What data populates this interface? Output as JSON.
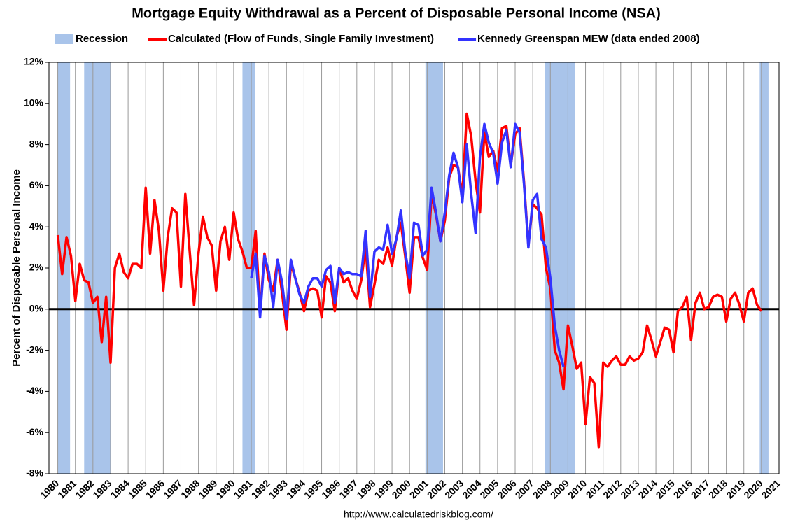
{
  "chart_data": {
    "type": "line",
    "title": "Mortgage Equity Withdrawal as a Percent of Disposable Personal Income (NSA)",
    "ylabel": "Percent of Disposable Personal Income",
    "source": "http://www.calculatedriskblog.com/",
    "xlim": [
      1979.5,
      2021
    ],
    "xticks": [
      1980,
      1981,
      1982,
      1983,
      1984,
      1985,
      1986,
      1987,
      1988,
      1989,
      1990,
      1991,
      1992,
      1993,
      1994,
      1995,
      1996,
      1997,
      1998,
      1999,
      2000,
      2001,
      2002,
      2003,
      2004,
      2005,
      2006,
      2007,
      2008,
      2009,
      2010,
      2011,
      2012,
      2013,
      2014,
      2015,
      2016,
      2017,
      2018,
      2019,
      2020,
      2021
    ],
    "ylim": [
      -8,
      12
    ],
    "yticks": [
      {
        "value": -8,
        "label": "-8%"
      },
      {
        "value": -6,
        "label": "-6%"
      },
      {
        "value": -4,
        "label": "-4%"
      },
      {
        "value": -2,
        "label": "-2%"
      },
      {
        "value": 0,
        "label": "0%"
      },
      {
        "value": 2,
        "label": "2%"
      },
      {
        "value": 4,
        "label": "4%"
      },
      {
        "value": 6,
        "label": "6%"
      },
      {
        "value": 8,
        "label": "8%"
      },
      {
        "value": 10,
        "label": "10%"
      },
      {
        "value": 12,
        "label": "12%"
      }
    ],
    "grid": true,
    "zero_line": true,
    "recessions": {
      "name": "Recession",
      "color": "#a9c4ea",
      "ranges": [
        [
          1980.0,
          1980.7
        ],
        [
          1981.5,
          1983.0
        ],
        [
          1990.5,
          1991.2
        ],
        [
          2000.9,
          2001.9
        ],
        [
          2007.7,
          2009.4
        ],
        [
          2019.9,
          2020.4
        ]
      ]
    },
    "x": [
      1980,
      1980.25,
      1980.5,
      1980.75,
      1981,
      1981.25,
      1981.5,
      1981.75,
      1982,
      1982.25,
      1982.5,
      1982.75,
      1983,
      1983.25,
      1983.5,
      1983.75,
      1984,
      1984.25,
      1984.5,
      1984.75,
      1985,
      1985.25,
      1985.5,
      1985.75,
      1986,
      1986.25,
      1986.5,
      1986.75,
      1987,
      1987.25,
      1987.5,
      1987.75,
      1988,
      1988.25,
      1988.5,
      1988.75,
      1989,
      1989.25,
      1989.5,
      1989.75,
      1990,
      1990.25,
      1990.5,
      1990.75,
      1991,
      1991.25,
      1991.5,
      1991.75,
      1992,
      1992.25,
      1992.5,
      1992.75,
      1993,
      1993.25,
      1993.5,
      1993.75,
      1994,
      1994.25,
      1994.5,
      1994.75,
      1995,
      1995.25,
      1995.5,
      1995.75,
      1996,
      1996.25,
      1996.5,
      1996.75,
      1997,
      1997.25,
      1997.5,
      1997.75,
      1998,
      1998.25,
      1998.5,
      1998.75,
      1999,
      1999.25,
      1999.5,
      1999.75,
      2000,
      2000.25,
      2000.5,
      2000.75,
      2001,
      2001.25,
      2001.5,
      2001.75,
      2002,
      2002.25,
      2002.5,
      2002.75,
      2003,
      2003.25,
      2003.5,
      2003.75,
      2004,
      2004.25,
      2004.5,
      2004.75,
      2005,
      2005.25,
      2005.5,
      2005.75,
      2006,
      2006.25,
      2006.5,
      2006.75,
      2007,
      2007.25,
      2007.5,
      2007.75,
      2008,
      2008.25,
      2008.5,
      2008.75,
      2009,
      2009.25,
      2009.5,
      2009.75,
      2010,
      2010.25,
      2010.5,
      2010.75,
      2011,
      2011.25,
      2011.5,
      2011.75,
      2012,
      2012.25,
      2012.5,
      2012.75,
      2013,
      2013.25,
      2013.5,
      2013.75,
      2014,
      2014.25,
      2014.5,
      2014.75,
      2015,
      2015.25,
      2015.5,
      2015.75,
      2016,
      2016.25,
      2016.5,
      2016.75,
      2017,
      2017.25,
      2017.5,
      2017.75,
      2018,
      2018.25,
      2018.5,
      2018.75,
      2019,
      2019.25,
      2019.5,
      2019.75,
      2020
    ],
    "series": [
      {
        "name": "Calculated (Flow of Funds, Single Family Investment)",
        "color": "#ff0000",
        "values": [
          3.6,
          1.7,
          3.5,
          2.6,
          0.4,
          2.2,
          1.4,
          1.3,
          0.3,
          0.6,
          -1.6,
          0.6,
          -2.6,
          2.0,
          2.7,
          1.8,
          1.5,
          2.2,
          2.2,
          2.0,
          5.9,
          2.7,
          5.3,
          3.8,
          0.9,
          3.5,
          4.9,
          4.7,
          1.1,
          5.6,
          2.8,
          0.2,
          2.7,
          4.5,
          3.5,
          3.1,
          0.9,
          3.3,
          4.0,
          2.4,
          4.7,
          3.4,
          2.8,
          2.0,
          2.0,
          3.8,
          -0.2,
          2.7,
          1.4,
          0.9,
          2.4,
          0.8,
          -1.0,
          2.2,
          1.5,
          0.8,
          -0.1,
          0.9,
          1.0,
          0.9,
          -0.4,
          1.6,
          1.3,
          -0.1,
          2.0,
          1.3,
          1.5,
          0.9,
          0.5,
          1.4,
          3.0,
          0.1,
          1.2,
          2.4,
          2.2,
          3.0,
          2.1,
          3.5,
          4.2,
          2.6,
          0.8,
          3.5,
          3.5,
          2.5,
          1.9,
          5.6,
          4.6,
          3.3,
          4.3,
          6.4,
          7.0,
          6.9,
          5.5,
          9.5,
          8.4,
          6.2,
          4.7,
          8.6,
          7.4,
          7.7,
          6.7,
          8.8,
          8.9,
          7.0,
          8.5,
          8.8,
          6.2,
          3.1,
          5.1,
          4.9,
          4.6,
          2.0,
          1.0,
          -2.0,
          -2.6,
          -3.9,
          -0.8,
          -1.8,
          -2.9,
          -2.6,
          -5.6,
          -3.3,
          -3.6,
          -6.7,
          -2.6,
          -2.8,
          -2.5,
          -2.3,
          -2.7,
          -2.7,
          -2.3,
          -2.5,
          -2.4,
          -2.1,
          -0.8,
          -1.5,
          -2.3,
          -1.6,
          -0.9,
          -1.0,
          -2.1,
          -0.1,
          0.1,
          0.6,
          -1.5,
          0.3,
          0.8,
          0.0,
          0.1,
          0.6,
          0.7,
          0.6,
          -0.6,
          0.5,
          0.8,
          0.2,
          -0.6,
          0.8,
          1.0,
          0.2,
          -0.1
        ]
      },
      {
        "name": "Kennedy Greenspan MEW (data ended 2008)",
        "color": "#3333ff",
        "values": [
          null,
          null,
          null,
          null,
          null,
          null,
          null,
          null,
          null,
          null,
          null,
          null,
          null,
          null,
          null,
          null,
          null,
          null,
          null,
          null,
          null,
          null,
          null,
          null,
          null,
          null,
          null,
          null,
          null,
          null,
          null,
          null,
          null,
          null,
          null,
          null,
          null,
          null,
          null,
          null,
          null,
          null,
          null,
          null,
          1.5,
          2.7,
          -0.4,
          2.6,
          1.8,
          0.1,
          2.4,
          1.3,
          -0.5,
          2.4,
          1.5,
          0.7,
          0.3,
          1.1,
          1.5,
          1.5,
          1.1,
          1.9,
          2.1,
          0.3,
          2.0,
          1.7,
          1.8,
          1.7,
          1.7,
          1.6,
          3.8,
          0.6,
          2.8,
          3.0,
          2.9,
          4.1,
          2.7,
          3.4,
          4.8,
          2.8,
          1.5,
          4.2,
          4.1,
          2.6,
          2.9,
          5.9,
          4.7,
          3.3,
          4.7,
          6.5,
          7.6,
          6.9,
          5.2,
          8.0,
          5.6,
          3.7,
          7.4,
          9.0,
          8.1,
          7.6,
          6.1,
          8.1,
          8.7,
          6.9,
          9.0,
          8.6,
          6.1,
          3.0,
          5.3,
          5.6,
          3.4,
          3.0,
          1.5,
          -0.8,
          -2.0,
          -2.8,
          null,
          null,
          null,
          null,
          null,
          null,
          null,
          null,
          null,
          null,
          null,
          null,
          null,
          null,
          null,
          null,
          null,
          null,
          null,
          null,
          null,
          null,
          null,
          null,
          null,
          null,
          null,
          null,
          null,
          null,
          null,
          null,
          null,
          null,
          null,
          null,
          null,
          null,
          null,
          null,
          null,
          null,
          null,
          null,
          null
        ]
      }
    ]
  }
}
